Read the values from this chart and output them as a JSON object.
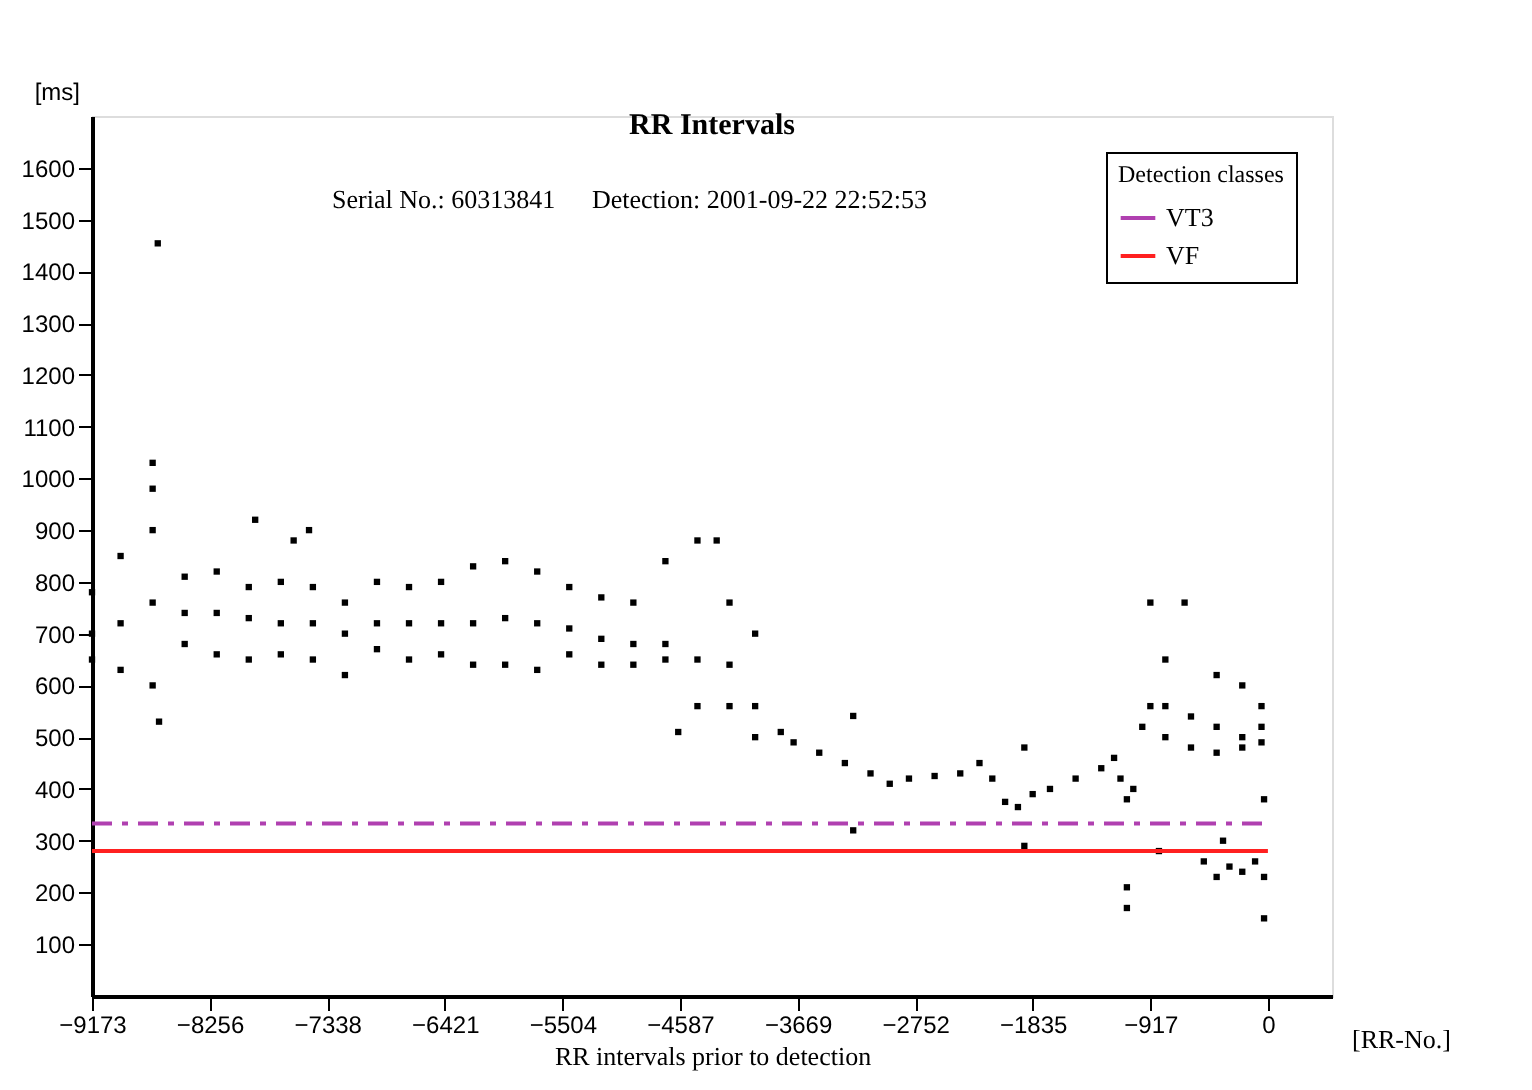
{
  "chart_data": {
    "type": "scatter",
    "title": "RR Intervals",
    "xlabel": "RR intervals prior to detection",
    "ylabel": "[ms]",
    "legend_title": "Detection classes",
    "annotations": [
      "Serial No.: 60313841",
      "Detection:  2001-09-22 22:52:53",
      "[RR-No.]"
    ],
    "xlim": [
      -9173,
      500
    ],
    "xticks": [
      -9173,
      -8256,
      -7338,
      -6421,
      -5504,
      -4587,
      -3669,
      -2752,
      -1835,
      -917,
      0
    ],
    "ylim": [
      0,
      1700
    ],
    "yticks": [
      100,
      200,
      300,
      400,
      500,
      600,
      700,
      800,
      900,
      1000,
      1100,
      1200,
      1300,
      1400,
      1500,
      1600
    ],
    "grid": false,
    "legend": "top right",
    "series": [
      {
        "marker": "square",
        "color": "#000000",
        "x": [
          -9173,
          -9173,
          -9173,
          -8950,
          -8950,
          -8950,
          -8700,
          -8700,
          -8700,
          -8700,
          -8660,
          -8650,
          -8700,
          -8450,
          -8450,
          -8450,
          -8200,
          -8200,
          -8200,
          -7950,
          -7950,
          -7950,
          -7900,
          -7700,
          -7700,
          -7700,
          -7600,
          -7450,
          -7450,
          -7450,
          -7480,
          -7200,
          -7200,
          -7200,
          -6950,
          -6950,
          -6950,
          -6700,
          -6700,
          -6700,
          -6450,
          -6450,
          -6450,
          -6200,
          -6200,
          -6200,
          -5950,
          -5950,
          -5950,
          -5700,
          -5700,
          -5700,
          -5450,
          -5450,
          -5450,
          -5200,
          -5200,
          -5200,
          -4950,
          -4950,
          -4950,
          -4700,
          -4700,
          -4700,
          -4600,
          -4450,
          -4450,
          -4450,
          -4300,
          -4200,
          -4200,
          -4200,
          -4000,
          -4000,
          -4000,
          -3800,
          -3700,
          -3500,
          -3300,
          -3100,
          -2950,
          -2800,
          -2600,
          -2400,
          -2250,
          -2150,
          -2050,
          -1950,
          -1835,
          -1700,
          -1500,
          -1300,
          -1200,
          -1150,
          -1100,
          -1050,
          -980,
          -917,
          -3235,
          -3235,
          -1900,
          -1900,
          -1100,
          -1100,
          -917,
          -800,
          -800,
          -800,
          -650,
          -600,
          -600,
          -400,
          -400,
          -400,
          -200,
          -200,
          -200,
          -50,
          -50,
          -50,
          -500,
          -400,
          -300,
          -200,
          -100,
          -30,
          -30,
          -30,
          -350,
          -850
        ],
        "values": [
          650,
          700,
          780,
          630,
          720,
          850,
          600,
          760,
          900,
          1030,
          1454,
          530,
          980,
          680,
          740,
          810,
          660,
          740,
          820,
          650,
          730,
          790,
          920,
          660,
          720,
          800,
          880,
          650,
          720,
          790,
          900,
          620,
          700,
          760,
          670,
          720,
          800,
          650,
          720,
          790,
          660,
          720,
          800,
          640,
          720,
          830,
          640,
          730,
          840,
          630,
          720,
          820,
          660,
          710,
          790,
          640,
          690,
          770,
          640,
          680,
          760,
          650,
          680,
          840,
          510,
          560,
          650,
          880,
          880,
          560,
          640,
          760,
          500,
          560,
          700,
          510,
          490,
          470,
          450,
          430,
          410,
          420,
          425,
          430,
          450,
          420,
          375,
          365,
          390,
          400,
          420,
          440,
          460,
          420,
          380,
          400,
          520,
          560,
          541,
          320,
          480,
          290,
          170,
          210,
          760,
          500,
          560,
          650,
          760,
          480,
          540,
          470,
          520,
          620,
          480,
          500,
          600,
          490,
          520,
          560,
          260,
          230,
          250,
          240,
          260,
          230,
          150,
          380,
          300,
          280
        ]
      },
      {
        "type": "line",
        "name": "VT3",
        "color": "#b040b0",
        "line_style": "dashed",
        "x": [
          -9173,
          0
        ],
        "values": [
          333,
          333
        ]
      },
      {
        "type": "line",
        "name": "VF",
        "color": "#ff2020",
        "line_style": "solid",
        "x": [
          -9173,
          0
        ],
        "values": [
          280,
          280
        ]
      }
    ]
  }
}
